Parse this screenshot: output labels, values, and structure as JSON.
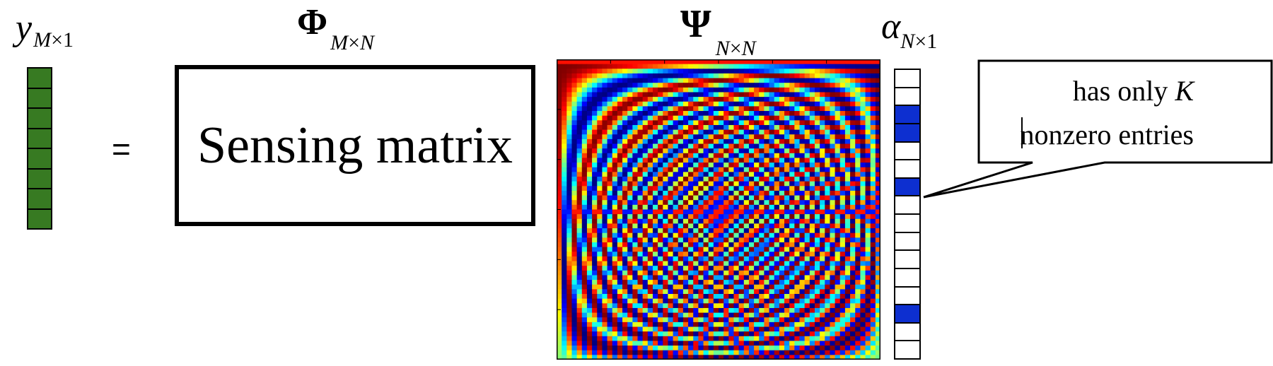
{
  "labels": {
    "y": {
      "symbol": "y",
      "subscript_a": "M",
      "subscript_times": "×",
      "subscript_b": "1"
    },
    "phi": {
      "symbol": "Φ",
      "subscript_a": "M",
      "subscript_times": "×",
      "subscript_b": "N"
    },
    "psi": {
      "symbol": "Ψ",
      "subscript_a": "N",
      "subscript_times": "×",
      "subscript_b": "N"
    },
    "alpha": {
      "symbol": "α",
      "subscript_a": "N",
      "subscript_times": "×",
      "subscript_b": "1"
    }
  },
  "equals": "=",
  "sensing_matrix_label": "Sensing matrix",
  "y_vector": {
    "cell_count": 8,
    "color": "#377a22"
  },
  "alpha_vector": {
    "cell_count": 16,
    "nonzero_indices": [
      2,
      3,
      6,
      13
    ],
    "nonzero_color": "#0d2fd0"
  },
  "callout": {
    "line1_prefix": "has only ",
    "line1_var": "K",
    "line2": "nonzero entries"
  },
  "heatmap": {
    "grid_size": 64,
    "colormap": "jet"
  }
}
